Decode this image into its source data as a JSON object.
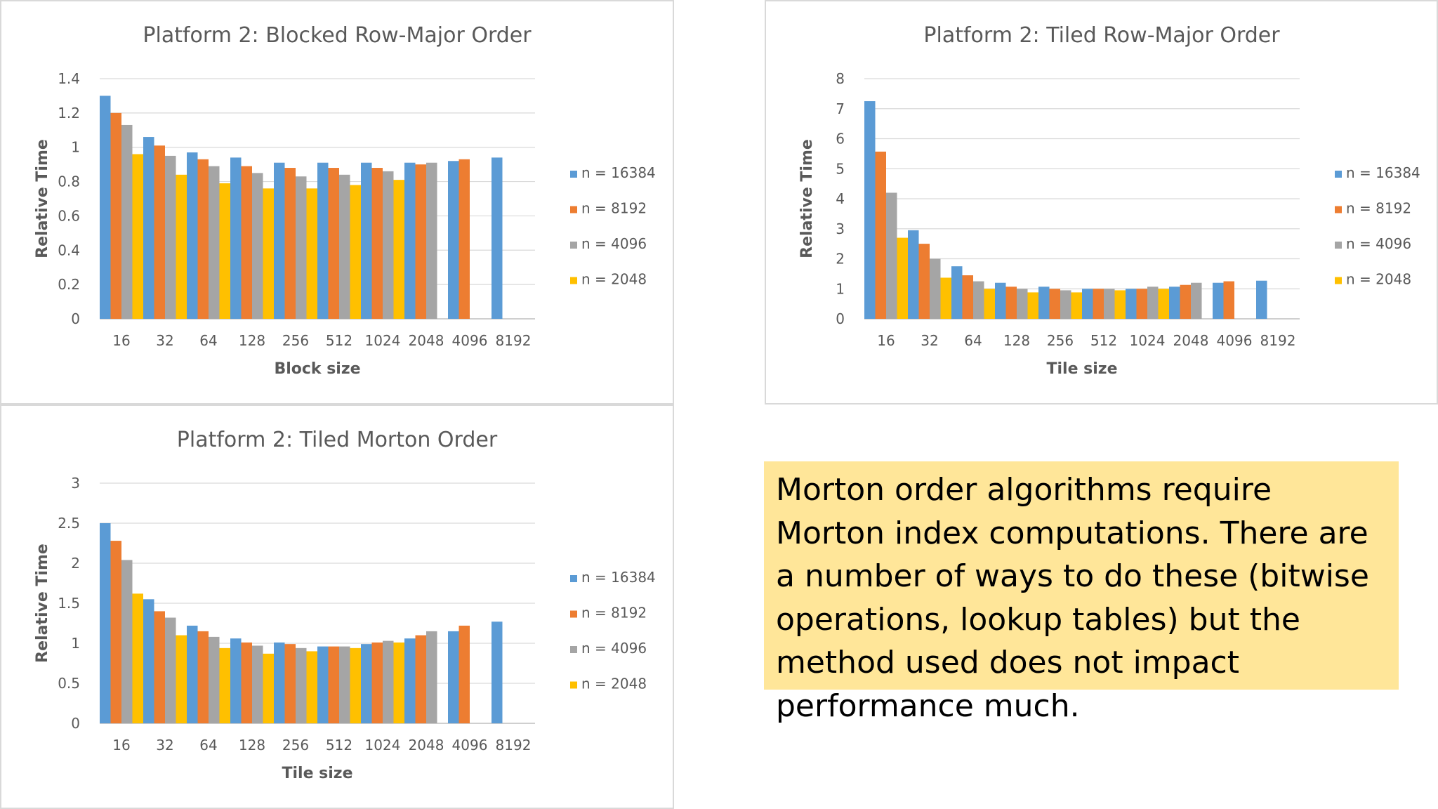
{
  "series_meta": [
    {
      "name": "n = 16384",
      "color": "#5b9bd5"
    },
    {
      "name": "n = 8192",
      "color": "#ed7d31"
    },
    {
      "name": "n = 4096",
      "color": "#a5a5a5"
    },
    {
      "name": "n = 2048",
      "color": "#ffc000"
    }
  ],
  "chart_data": [
    {
      "type": "bar",
      "title": "Platform 2: Blocked Row-Major Order",
      "xlabel": "Block size",
      "ylabel": "Relative Time",
      "ylim": [
        0,
        1.4
      ],
      "yticks": [
        "0",
        "0.2",
        "0.4",
        "0.6",
        "0.8",
        "1",
        "1.2",
        "1.4"
      ],
      "grid": true,
      "legend": "right",
      "categories": [
        "16",
        "32",
        "64",
        "128",
        "256",
        "512",
        "1024",
        "2048",
        "4096",
        "8192"
      ],
      "series": [
        {
          "name": "n = 16384",
          "values": [
            1.3,
            1.06,
            0.97,
            0.94,
            0.91,
            0.91,
            0.91,
            0.91,
            0.92,
            0.94
          ]
        },
        {
          "name": "n = 8192",
          "values": [
            1.2,
            1.01,
            0.93,
            0.89,
            0.88,
            0.88,
            0.88,
            0.9,
            0.93,
            null
          ]
        },
        {
          "name": "n = 4096",
          "values": [
            1.13,
            0.95,
            0.89,
            0.85,
            0.83,
            0.84,
            0.86,
            0.91,
            null,
            null
          ]
        },
        {
          "name": "n = 2048",
          "values": [
            0.96,
            0.84,
            0.79,
            0.76,
            0.76,
            0.78,
            0.81,
            null,
            null,
            null
          ]
        }
      ]
    },
    {
      "type": "bar",
      "title": "Platform 2: Tiled Row-Major Order",
      "xlabel": "Tile size",
      "ylabel": "Relative Time",
      "ylim": [
        0,
        8
      ],
      "yticks": [
        "0",
        "1",
        "2",
        "3",
        "4",
        "5",
        "6",
        "7",
        "8"
      ],
      "grid": true,
      "legend": "right",
      "categories": [
        "16",
        "32",
        "64",
        "128",
        "256",
        "512",
        "1024",
        "2048",
        "4096",
        "8192"
      ],
      "series": [
        {
          "name": "n = 16384",
          "values": [
            7.25,
            2.95,
            1.75,
            1.2,
            1.07,
            1.0,
            1.0,
            1.07,
            1.2,
            1.27
          ]
        },
        {
          "name": "n = 8192",
          "values": [
            5.57,
            2.5,
            1.45,
            1.07,
            1.0,
            1.0,
            1.0,
            1.13,
            1.25,
            null
          ]
        },
        {
          "name": "n = 4096",
          "values": [
            4.2,
            2.0,
            1.25,
            1.0,
            0.95,
            1.0,
            1.07,
            1.2,
            null,
            null
          ]
        },
        {
          "name": "n = 2048",
          "values": [
            2.7,
            1.37,
            1.0,
            0.88,
            0.88,
            0.95,
            1.0,
            null,
            null,
            null
          ]
        }
      ]
    },
    {
      "type": "bar",
      "title": "Platform 2: Tiled Morton Order",
      "xlabel": "Tile size",
      "ylabel": "Relative Time",
      "ylim": [
        0,
        3
      ],
      "yticks": [
        "0",
        "0.5",
        "1",
        "1.5",
        "2",
        "2.5",
        "3"
      ],
      "grid": true,
      "legend": "right",
      "categories": [
        "16",
        "32",
        "64",
        "128",
        "256",
        "512",
        "1024",
        "2048",
        "4096",
        "8192"
      ],
      "series": [
        {
          "name": "n = 16384",
          "values": [
            2.5,
            1.55,
            1.22,
            1.06,
            1.01,
            0.96,
            0.99,
            1.06,
            1.15,
            1.27
          ]
        },
        {
          "name": "n = 8192",
          "values": [
            2.28,
            1.4,
            1.15,
            1.01,
            0.99,
            0.96,
            1.01,
            1.1,
            1.22,
            null
          ]
        },
        {
          "name": "n = 4096",
          "values": [
            2.04,
            1.32,
            1.08,
            0.97,
            0.94,
            0.96,
            1.03,
            1.15,
            null,
            null
          ]
        },
        {
          "name": "n = 2048",
          "values": [
            1.62,
            1.1,
            0.94,
            0.87,
            0.9,
            0.94,
            1.01,
            null,
            null,
            null
          ]
        }
      ]
    }
  ],
  "note": {
    "text": "Morton order algorithms require Morton index computations. There are a number of ways to do these (bitwise operations, lookup tables) but the method used does not impact performance much."
  }
}
